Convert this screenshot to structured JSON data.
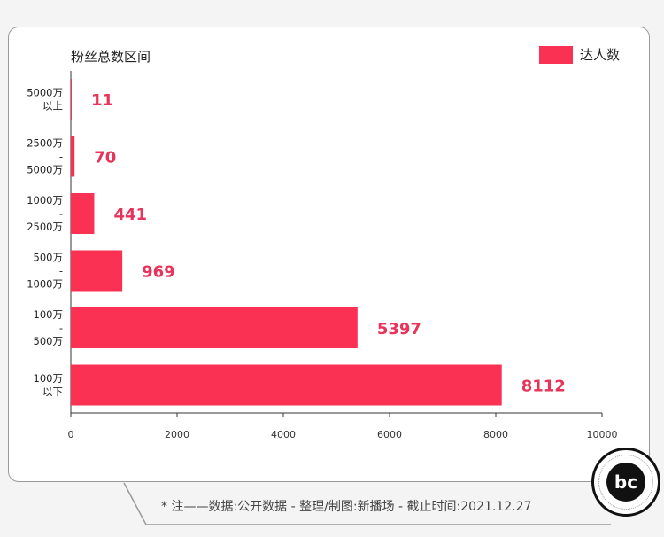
{
  "chart_data": {
    "type": "bar",
    "orientation": "horizontal",
    "title": "粉丝总数区间",
    "categories": [
      [
        "5000万",
        "以上"
      ],
      [
        "2500万",
        "-",
        "5000万"
      ],
      [
        "1000万",
        "-",
        "2500万"
      ],
      [
        "500万",
        "-",
        "1000万"
      ],
      [
        "100万",
        "-",
        "500万"
      ],
      [
        "100万",
        "以下"
      ]
    ],
    "series": [
      {
        "name": "达人数",
        "values": [
          11,
          70,
          441,
          969,
          5397,
          8112
        ]
      }
    ],
    "xlim": [
      0,
      10000
    ],
    "xticks": [
      0,
      2000,
      4000,
      6000,
      8000,
      10000
    ],
    "legend": "top-right",
    "grid": false,
    "bar_color": "#fb3153",
    "label_color": "#e8345a"
  },
  "footer": {
    "note": "* 注——数据:公开数据  -  整理/制图:新播场  -  截止时间:2021.12.27"
  },
  "logo": {
    "text": "bc"
  }
}
